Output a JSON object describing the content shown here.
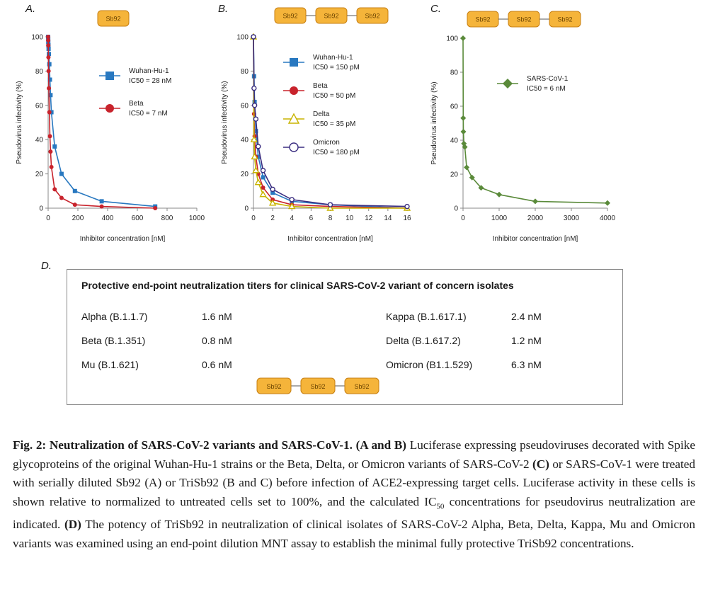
{
  "panels": {
    "a": {
      "letter": "A.",
      "nanobody": {
        "parts": [
          "Sb92"
        ]
      },
      "chart_data": {
        "type": "line",
        "xlabel": "Inhibitor concentration [nM]",
        "ylabel": "Pseudovirus infectivity (%)",
        "xlim": [
          0,
          1000
        ],
        "ylim": [
          0,
          100
        ],
        "xticks": [
          0,
          200,
          400,
          600,
          800,
          1000
        ],
        "yticks": [
          0,
          20,
          40,
          60,
          80,
          100
        ],
        "series": [
          {
            "name": "Wuhan-Hu-1",
            "label_line2": "IC50 = 28 nM",
            "color": "#2878c0",
            "marker": "square",
            "points": [
              [
                0,
                100
              ],
              [
                0.5,
                99
              ],
              [
                1,
                97
              ],
              [
                2,
                95
              ],
              [
                3,
                93
              ],
              [
                5,
                90
              ],
              [
                8,
                84
              ],
              [
                12,
                75
              ],
              [
                16,
                66
              ],
              [
                22,
                56
              ],
              [
                44,
                36
              ],
              [
                90,
                20
              ],
              [
                180,
                10
              ],
              [
                360,
                4
              ],
              [
                720,
                1
              ]
            ]
          },
          {
            "name": "Beta",
            "label_line2": "IC50 = 7 nM",
            "color": "#c8232c",
            "marker": "circle",
            "points": [
              [
                0,
                100
              ],
              [
                0.5,
                98
              ],
              [
                1,
                95
              ],
              [
                2,
                88
              ],
              [
                3,
                80
              ],
              [
                5,
                70
              ],
              [
                8,
                56
              ],
              [
                12,
                42
              ],
              [
                16,
                33
              ],
              [
                22,
                24
              ],
              [
                44,
                11
              ],
              [
                90,
                6
              ],
              [
                180,
                2
              ],
              [
                360,
                1
              ],
              [
                720,
                0
              ]
            ]
          }
        ]
      }
    },
    "b": {
      "letter": "B.",
      "nanobody": {
        "parts": [
          "Sb92",
          "Sb92",
          "Sb92"
        ]
      },
      "chart_data": {
        "type": "line",
        "xlabel": "Inhibitor concentration [nM]",
        "ylabel": "Pseudovirus infectivity (%)",
        "xlim": [
          0,
          16
        ],
        "ylim": [
          0,
          100
        ],
        "xticks": [
          0,
          2,
          4,
          6,
          8,
          10,
          12,
          14,
          16
        ],
        "yticks": [
          0,
          20,
          40,
          60,
          80,
          100
        ],
        "series": [
          {
            "name": "Wuhan-Hu-1",
            "label_line2": "IC50 = 150 pM",
            "color": "#2878c0",
            "marker": "square",
            "points": [
              [
                0,
                100
              ],
              [
                0.06,
                77
              ],
              [
                0.12,
                62
              ],
              [
                0.25,
                45
              ],
              [
                0.5,
                30
              ],
              [
                1,
                18
              ],
              [
                2,
                9
              ],
              [
                4,
                4
              ],
              [
                8,
                2
              ],
              [
                16,
                0
              ]
            ]
          },
          {
            "name": "Beta",
            "label_line2": "IC50 = 50 pM",
            "color": "#c8232c",
            "marker": "circle",
            "points": [
              [
                0,
                100
              ],
              [
                0.06,
                55
              ],
              [
                0.12,
                42
              ],
              [
                0.25,
                30
              ],
              [
                0.5,
                20
              ],
              [
                1,
                12
              ],
              [
                2,
                5
              ],
              [
                4,
                2
              ],
              [
                8,
                1
              ],
              [
                16,
                0
              ]
            ]
          },
          {
            "name": "Delta",
            "label_line2": "IC50 = 35 pM",
            "color": "#c8b400",
            "marker": "triangle",
            "points": [
              [
                0,
                100
              ],
              [
                0.06,
                40
              ],
              [
                0.12,
                30
              ],
              [
                0.25,
                22
              ],
              [
                0.5,
                15
              ],
              [
                1,
                8
              ],
              [
                2,
                3
              ],
              [
                4,
                1
              ],
              [
                8,
                0
              ],
              [
                16,
                0
              ]
            ]
          },
          {
            "name": "Omicron",
            "label_line2": "IC50 = 180 pM",
            "color": "#3a2d80",
            "marker": "open-circle",
            "points": [
              [
                0,
                100
              ],
              [
                0.06,
                70
              ],
              [
                0.12,
                60
              ],
              [
                0.25,
                52
              ],
              [
                0.5,
                36
              ],
              [
                1,
                22
              ],
              [
                2,
                11
              ],
              [
                4,
                5
              ],
              [
                8,
                2
              ],
              [
                16,
                1
              ]
            ]
          }
        ]
      }
    },
    "c": {
      "letter": "C.",
      "nanobody": {
        "parts": [
          "Sb92",
          "Sb92",
          "Sb92"
        ]
      },
      "chart_data": {
        "type": "line",
        "xlabel": "Inhibitor concentration [nM]",
        "ylabel": "Pseudovirus infectivity (%)",
        "xlim": [
          0,
          4000
        ],
        "ylim": [
          0,
          100
        ],
        "xticks": [
          0,
          1000,
          2000,
          3000,
          4000
        ],
        "yticks": [
          0,
          20,
          40,
          60,
          80,
          100
        ],
        "series": [
          {
            "name": "SARS-CoV-1",
            "label_line2": "IC50 = 6 nM",
            "color": "#5a8a3a",
            "marker": "diamond",
            "points": [
              [
                0,
                100
              ],
              [
                5,
                53
              ],
              [
                10,
                45
              ],
              [
                25,
                38
              ],
              [
                50,
                36
              ],
              [
                100,
                24
              ],
              [
                250,
                18
              ],
              [
                500,
                12
              ],
              [
                1000,
                8
              ],
              [
                2000,
                4
              ],
              [
                4000,
                3
              ]
            ]
          }
        ]
      }
    }
  },
  "table": {
    "letter": "D.",
    "title": "Protective end-point neutralization titers for clinical SARS-CoV-2 variant of concern isolates",
    "left_rows": [
      {
        "variant": "Alpha (B.1.1.7)",
        "value": "1.6 nM"
      },
      {
        "variant": "Beta (B.1.351)",
        "value": "0.8 nM"
      },
      {
        "variant": "Mu (B.1.621)",
        "value": "0.6 nM"
      }
    ],
    "right_rows": [
      {
        "variant": "Kappa (B.1.617.1)",
        "value": "2.4 nM"
      },
      {
        "variant": "Delta (B.1.617.2)",
        "value": "1.2 nM"
      },
      {
        "variant": "Omicron (B1.1.529)",
        "value": "6.3 nM"
      }
    ],
    "nanobody": {
      "parts": [
        "Sb92",
        "Sb92",
        "Sb92"
      ]
    }
  },
  "caption": {
    "bold_lead": "Fig. 2: Neutralization of SARS-CoV-2 variants and SARS-CoV-1. (A and B)",
    "part1": " Luciferase expressing pseudoviruses decorated with Spike glycoproteins of the original Wuhan-Hu-1 strains or the Beta, Delta, or Omicron variants of SARS-CoV-2 ",
    "bold_c": "(C)",
    "part2": " or SARS-CoV-1 were treated with serially diluted Sb92 (A) or TriSb92 (B and C) before infection of ACE2-expressing target cells. Luciferase activity in these cells is shown relative to normalized to untreated cells set to 100%, and the calculated IC",
    "sub": "50",
    "part3": " concentrations for pseudovirus neutralization are indicated. ",
    "bold_d": "(D)",
    "part4": " The potency of TriSb92 in neutralization of clinical isolates of SARS-CoV-2 Alpha, Beta, Delta, Kappa, Mu and Omicron variants was examined using an end-point dilution MNT assay to establish the minimal fully protective TriSb92 concentrations."
  }
}
